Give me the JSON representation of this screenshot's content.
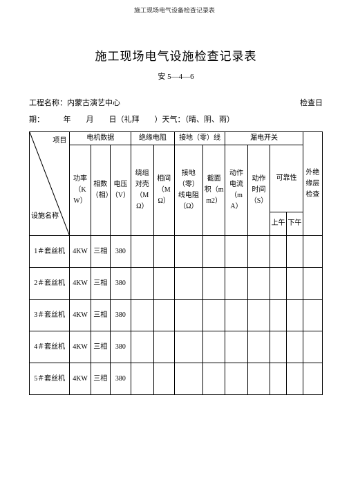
{
  "page_header": "施工现场电气设备检查记录表",
  "title": "施工现场电气设施检查记录表",
  "subcode": "安 5—4—6",
  "meta": {
    "project_label": "工程名称：",
    "project_name": "内蒙古演艺中心",
    "check_day_label": "检查日",
    "period_label": "期：",
    "date_fragment": "年　　月　　日（礼拜　　）天气：（晴、阴、雨）"
  },
  "diag": {
    "top": "项目",
    "bottom": "设施名称"
  },
  "group_headers": {
    "motor": "电机数据",
    "insulation": "绝缘电阻",
    "grounding": "接地（零）线",
    "leakage": "漏电开关",
    "outer": "外绝缘层检查"
  },
  "sub_headers": {
    "power": "功率（KW）",
    "phase": "相数（相）",
    "voltage": "电压（V）",
    "winding": "绕组对壳（MΩ）",
    "between": "相间（MΩ）",
    "ground_r": "接地（零）线电阻（Ω）",
    "section": "截面积（mm2）",
    "act_current": "动作电流（mA）",
    "act_time": "动作时间（S）",
    "reliability": "可靠性",
    "am": "上午",
    "pm": "下午"
  },
  "rows": [
    {
      "name": "1＃套丝机",
      "power": "4KW",
      "phase": "三相",
      "voltage": "380"
    },
    {
      "name": "2＃套丝机",
      "power": "4KW",
      "phase": "三相",
      "voltage": "380"
    },
    {
      "name": "3＃套丝机",
      "power": "4KW",
      "phase": "三相",
      "voltage": "380"
    },
    {
      "name": "4＃套丝机",
      "power": "4KW",
      "phase": "三相",
      "voltage": "380"
    },
    {
      "name": "5＃套丝机",
      "power": "4KW",
      "phase": "三相",
      "voltage": "380"
    }
  ],
  "colors": {
    "border": "#000000",
    "bg": "#ffffff",
    "text": "#000000"
  }
}
